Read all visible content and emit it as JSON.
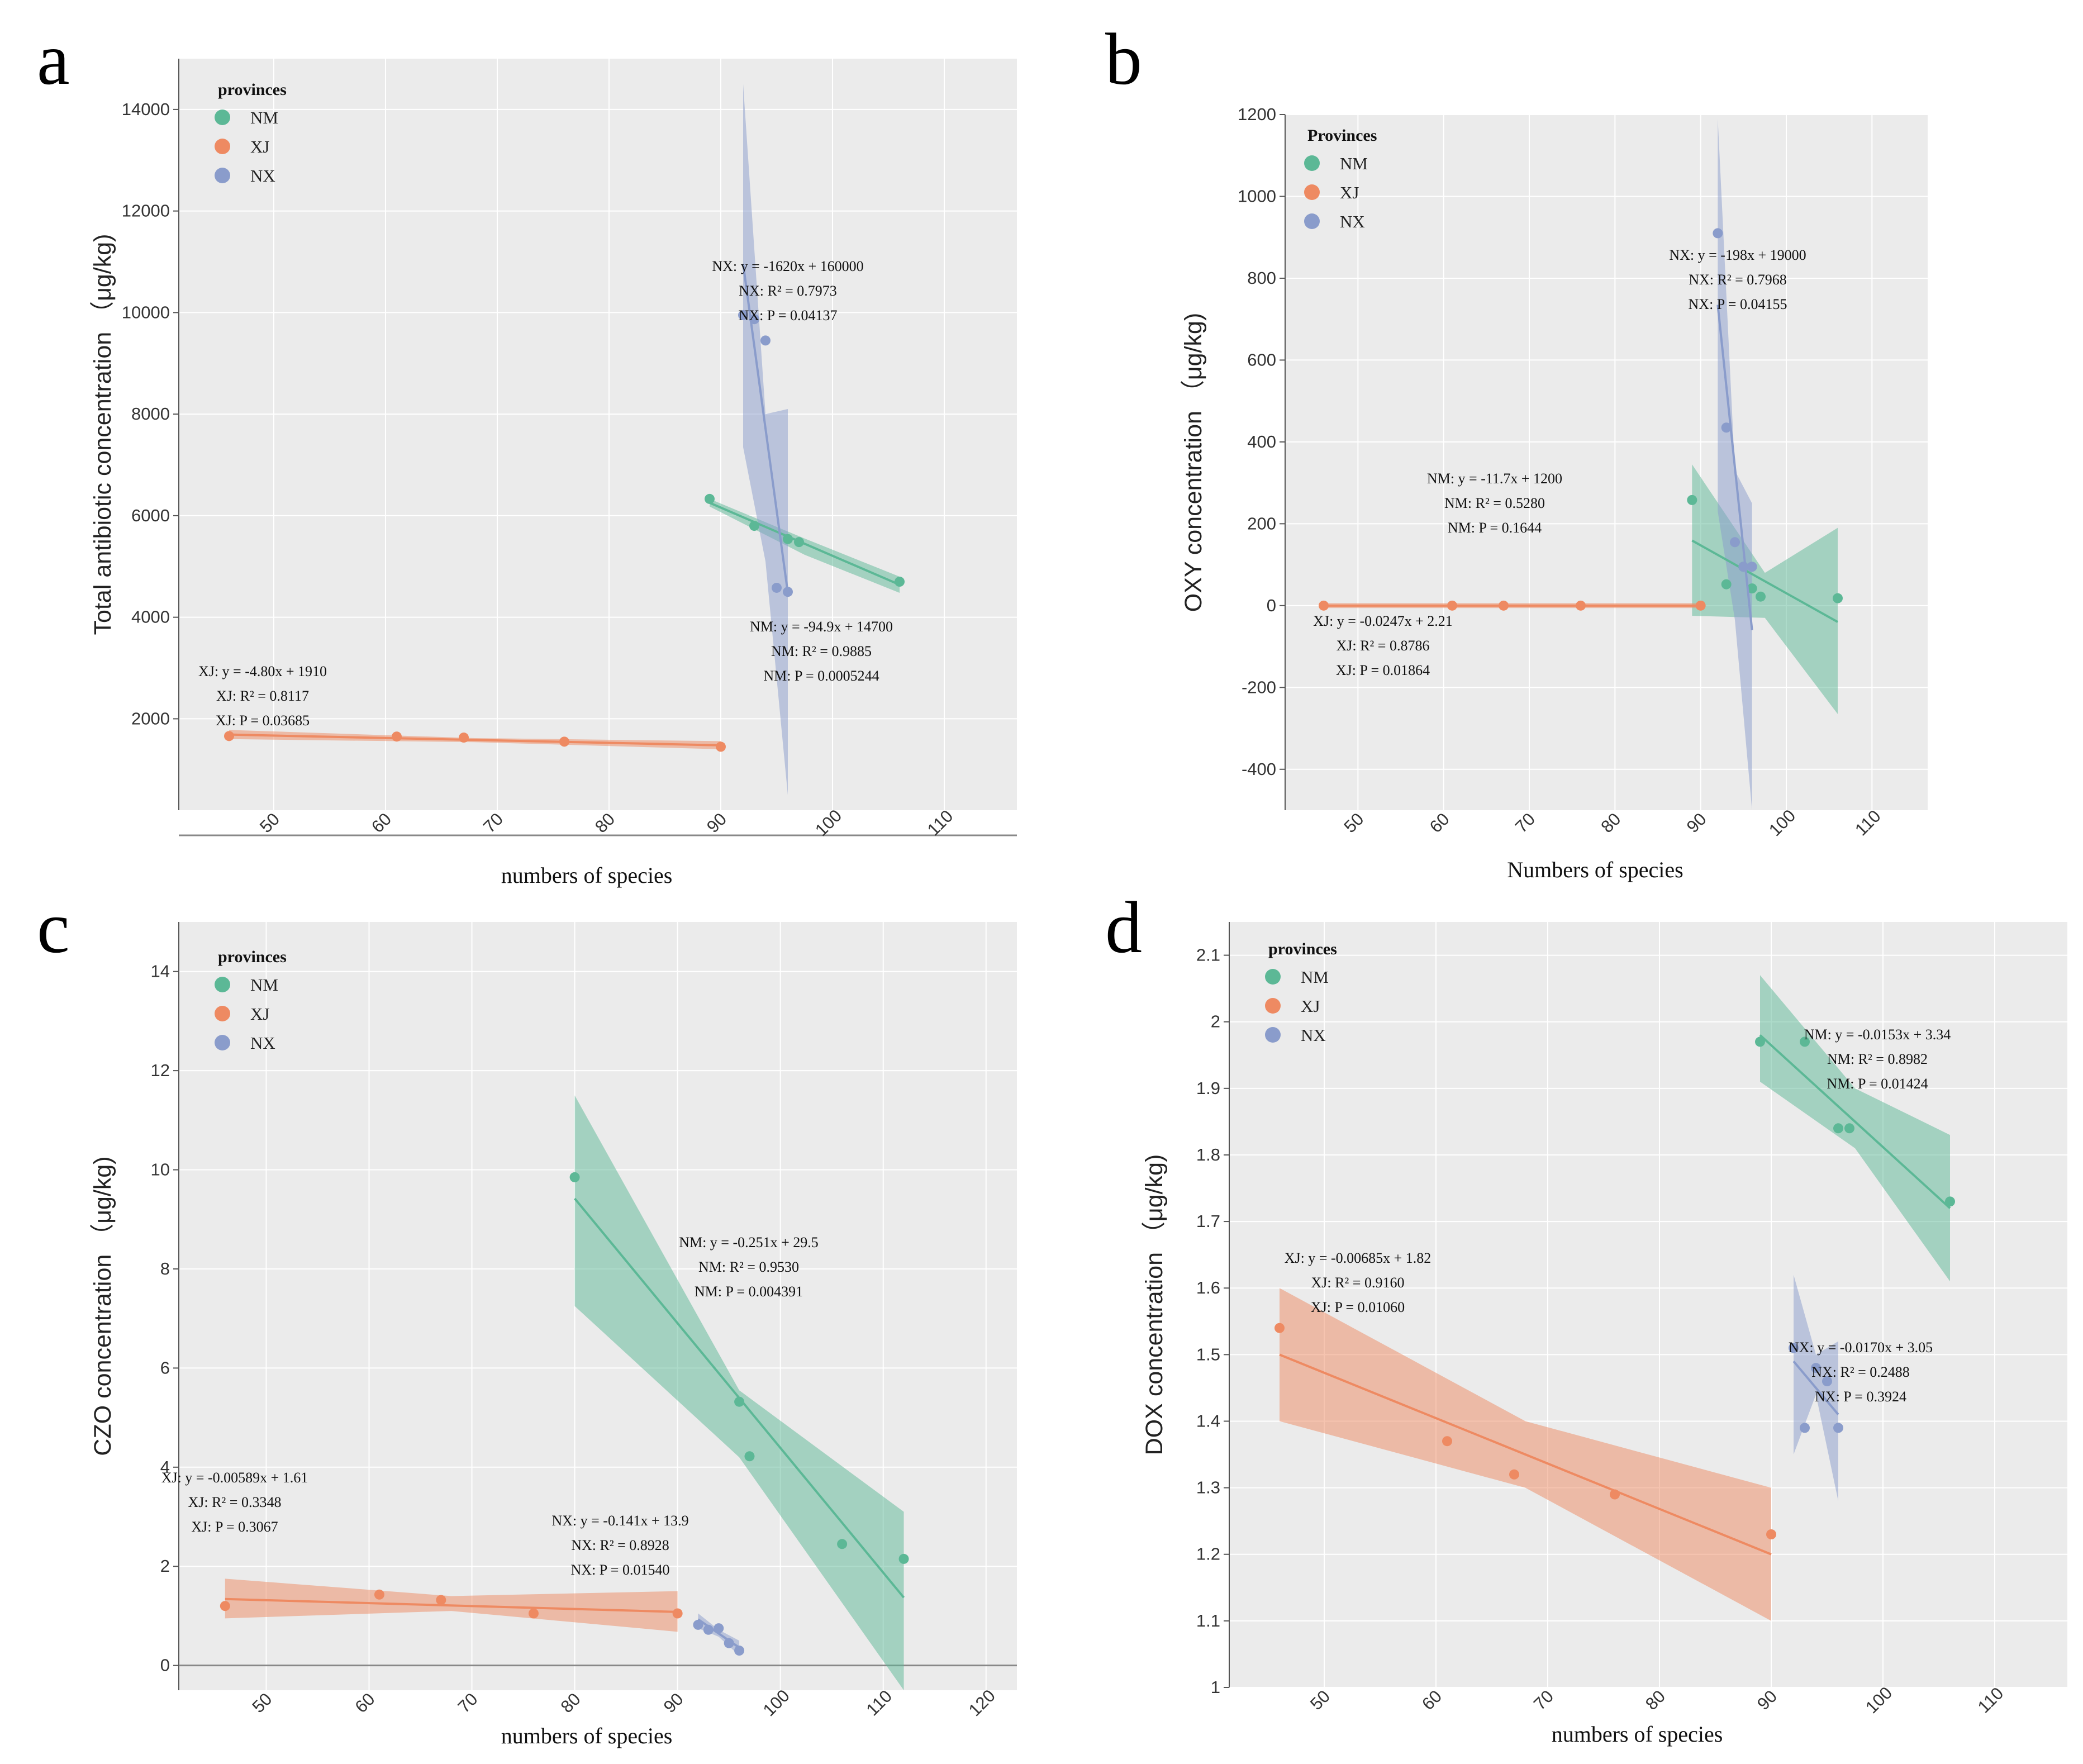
{
  "colors": {
    "NM": "#5cb896",
    "XJ": "#ee8a62",
    "NX": "#8a9ccb",
    "panel_bg": "#ebebeb",
    "grid": "#ffffff"
  },
  "chart_data": [
    {
      "panel": "a",
      "type": "scatter",
      "xlabel": "numbers of species",
      "ylabel": "Total antibiotic concentration （μg/kg)",
      "xlim": [
        41.5,
        116.5
      ],
      "ylim": [
        200,
        15000
      ],
      "xticks": [
        50,
        60,
        70,
        80,
        90,
        100,
        110
      ],
      "yticks": [
        2000,
        4000,
        6000,
        8000,
        10000,
        12000,
        14000
      ],
      "legend_title": "provinces",
      "legend": [
        "NM",
        "XJ",
        "NX"
      ],
      "series": [
        {
          "name": "NM",
          "x": [
            89,
            93,
            96,
            97,
            106
          ],
          "y": [
            6330,
            5800,
            5540,
            5480,
            4700
          ],
          "fit": {
            "x": [
              89,
              106
            ],
            "y": [
              6254,
              4641
            ]
          },
          "band": {
            "x": [
              89,
              97.5,
              106
            ],
            "upper": [
              6330,
              5550,
              4800
            ],
            "lower": [
              6180,
              5230,
              4480
            ]
          }
        },
        {
          "name": "XJ",
          "x": [
            46,
            61,
            67,
            76,
            90
          ],
          "y": [
            1660,
            1650,
            1630,
            1550,
            1450
          ],
          "fit": {
            "x": [
              46,
              90
            ],
            "y": [
              1689,
              1478
            ]
          },
          "band": {
            "x": [
              46,
              68,
              90
            ],
            "upper": [
              1780,
              1620,
              1560
            ],
            "lower": [
              1600,
              1540,
              1400
            ]
          }
        },
        {
          "name": "NX",
          "x": [
            92,
            93,
            94,
            95,
            96
          ],
          "y": [
            9950,
            9870,
            9450,
            4580,
            4500
          ],
          "fit": {
            "x": [
              92,
              96
            ],
            "y": [
              10960,
              4480
            ]
          },
          "band": {
            "x": [
              92,
              94,
              96
            ],
            "upper": [
              14500,
              8000,
              8100
            ],
            "lower": [
              7350,
              5100,
              500
            ]
          }
        }
      ],
      "annotations": [
        {
          "series": "NX",
          "lines": [
            "NX: y = -1620x + 160000",
            "NX: R² = 0.7973",
            "NX: P = 0.04137"
          ]
        },
        {
          "series": "NM",
          "lines": [
            "NM: y = -94.9x + 14700",
            "NM: R² = 0.9885",
            "NM: P = 0.0005244"
          ]
        },
        {
          "series": "XJ",
          "lines": [
            "XJ: y = -4.80x + 1910",
            "XJ: R² = 0.8117",
            "XJ: P = 0.03685"
          ]
        }
      ]
    },
    {
      "panel": "b",
      "type": "scatter",
      "xlabel": "Numbers of species",
      "ylabel": "OXY concentration （μg/kg)",
      "xlim": [
        41.5,
        116.5
      ],
      "ylim": [
        -500,
        1200
      ],
      "xticks": [
        50,
        60,
        70,
        80,
        90,
        100,
        110
      ],
      "yticks": [
        -400,
        -200,
        0,
        200,
        400,
        600,
        800,
        1000,
        1200
      ],
      "legend_title": "Provinces",
      "legend": [
        "NM",
        "XJ",
        "NX"
      ],
      "series": [
        {
          "name": "NM",
          "x": [
            89,
            93,
            95,
            96,
            97,
            106
          ],
          "y": [
            258,
            52,
            95,
            42,
            22,
            18
          ],
          "fit": {
            "x": [
              89,
              106
            ],
            "y": [
              159,
              -40
            ]
          },
          "band": {
            "x": [
              89,
              97.5,
              106
            ],
            "upper": [
              345,
              80,
              190
            ],
            "lower": [
              -25,
              -30,
              -265
            ]
          }
        },
        {
          "name": "XJ",
          "x": [
            46,
            61,
            67,
            76,
            90
          ],
          "y": [
            0,
            0,
            0,
            0,
            0
          ],
          "fit": {
            "x": [
              46,
              90
            ],
            "y": [
              0,
              0
            ]
          },
          "band": {
            "x": [
              46,
              68,
              90
            ],
            "upper": [
              6,
              6,
              6
            ],
            "lower": [
              -6,
              -6,
              -6
            ]
          }
        },
        {
          "name": "NX",
          "x": [
            92,
            93,
            94,
            95,
            96
          ],
          "y": [
            910,
            435,
            155,
            95,
            95
          ],
          "fit": {
            "x": [
              92,
              96
            ],
            "y": [
              735,
              -60
            ]
          },
          "band": {
            "x": [
              92,
              94,
              96
            ],
            "upper": [
              1190,
              330,
              250
            ],
            "lower": [
              230,
              -35,
              -500
            ]
          }
        }
      ],
      "annotations": [
        {
          "series": "NX",
          "lines": [
            "NX: y = -198x + 19000",
            "NX: R² = 0.7968",
            "NX: P = 0.04155"
          ]
        },
        {
          "series": "NM",
          "lines": [
            "NM: y = -11.7x + 1200",
            "NM: R² = 0.5280",
            "NM: P = 0.1644"
          ]
        },
        {
          "series": "XJ",
          "lines": [
            "XJ: y = -0.0247x + 2.21",
            "XJ: R² = 0.8786",
            "XJ: P = 0.01864"
          ]
        }
      ]
    },
    {
      "panel": "c",
      "type": "scatter",
      "xlabel": "numbers of species",
      "ylabel": "CZO concentration （μg/kg)",
      "xlim": [
        41.5,
        123
      ],
      "ylim": [
        -0.5,
        15
      ],
      "xticks": [
        50,
        60,
        70,
        80,
        90,
        100,
        110,
        120
      ],
      "yticks": [
        0,
        2,
        4,
        6,
        8,
        10,
        12,
        14
      ],
      "legend_title": "provinces",
      "legend": [
        "NM",
        "XJ",
        "NX"
      ],
      "series": [
        {
          "name": "NM",
          "x": [
            80,
            96,
            97,
            106,
            112
          ],
          "y": [
            9.85,
            5.32,
            4.22,
            2.45,
            2.15
          ],
          "fit": {
            "x": [
              80,
              112
            ],
            "y": [
              9.42,
              1.37
            ]
          },
          "band": {
            "x": [
              80,
              96,
              112
            ],
            "upper": [
              11.5,
              5.55,
              3.1
            ],
            "lower": [
              7.25,
              4.2,
              -0.5
            ]
          }
        },
        {
          "name": "XJ",
          "x": [
            46,
            61,
            67,
            76,
            90
          ],
          "y": [
            1.2,
            1.43,
            1.32,
            1.05,
            1.05
          ],
          "fit": {
            "x": [
              46,
              90
            ],
            "y": [
              1.34,
              1.08
            ]
          },
          "band": {
            "x": [
              46,
              68,
              90
            ],
            "upper": [
              1.75,
              1.4,
              1.5
            ],
            "lower": [
              0.95,
              1.1,
              0.68
            ]
          }
        },
        {
          "name": "NX",
          "x": [
            92,
            93,
            94,
            95,
            96
          ],
          "y": [
            0.82,
            0.72,
            0.75,
            0.45,
            0.3
          ],
          "fit": {
            "x": [
              92,
              96
            ],
            "y": [
              0.93,
              0.36
            ]
          },
          "band": {
            "x": [
              92,
              94,
              96
            ],
            "upper": [
              1.05,
              0.72,
              0.5
            ],
            "lower": [
              0.75,
              0.58,
              0.2
            ]
          }
        }
      ],
      "annotations": [
        {
          "series": "NM",
          "lines": [
            "NM: y = -0.251x + 29.5",
            "NM: R² = 0.9530",
            "NM: P = 0.004391"
          ]
        },
        {
          "series": "XJ",
          "lines": [
            "XJ: y = -0.00589x + 1.61",
            "XJ: R² = 0.3348",
            "XJ: P = 0.3067"
          ]
        },
        {
          "series": "NX",
          "lines": [
            "NX: y = -0.141x + 13.9",
            "NX: R² = 0.8928",
            "NX: P = 0.01540"
          ]
        }
      ]
    },
    {
      "panel": "d",
      "type": "scatter",
      "xlabel": "numbers of species",
      "ylabel": "DOX concentration （μg/kg)",
      "xlim": [
        41.5,
        116.5
      ],
      "ylim": [
        1,
        2.15
      ],
      "xticks": [
        50,
        60,
        70,
        80,
        90,
        100,
        110
      ],
      "yticks": [
        1,
        1.1,
        1.2,
        1.3,
        1.4,
        1.5,
        1.6,
        1.7,
        1.8,
        1.9,
        2,
        2.1
      ],
      "ytick_labels": [
        "1",
        "1.1",
        "1.2",
        "1.3",
        "1.4",
        "1.5",
        "1.6",
        "1.7",
        "1.8",
        "1.9",
        "2",
        "2.1"
      ],
      "legend_title": "provinces",
      "legend": [
        "NM",
        "XJ",
        "NX"
      ],
      "series": [
        {
          "name": "NM",
          "x": [
            89,
            93,
            96,
            97,
            106
          ],
          "y": [
            1.97,
            1.97,
            1.84,
            1.84,
            1.73
          ],
          "fit": {
            "x": [
              89,
              106
            ],
            "y": [
              1.98,
              1.72
            ]
          },
          "band": {
            "x": [
              89,
              97.5,
              106
            ],
            "upper": [
              2.07,
              1.9,
              1.83
            ],
            "lower": [
              1.91,
              1.81,
              1.61
            ]
          }
        },
        {
          "name": "XJ",
          "x": [
            46,
            61,
            67,
            76,
            90
          ],
          "y": [
            1.54,
            1.37,
            1.32,
            1.29,
            1.23
          ],
          "fit": {
            "x": [
              46,
              90
            ],
            "y": [
              1.5,
              1.2
            ]
          },
          "band": {
            "x": [
              46,
              68,
              90
            ],
            "upper": [
              1.6,
              1.4,
              1.3
            ],
            "lower": [
              1.4,
              1.3,
              1.1
            ]
          }
        },
        {
          "name": "NX",
          "x": [
            92,
            93,
            94,
            95,
            96
          ],
          "y": [
            1.51,
            1.39,
            1.48,
            1.46,
            1.39
          ],
          "fit": {
            "x": [
              92,
              96
            ],
            "y": [
              1.49,
              1.41
            ]
          },
          "band": {
            "x": [
              92,
              94,
              96
            ],
            "upper": [
              1.62,
              1.5,
              1.52
            ],
            "lower": [
              1.35,
              1.44,
              1.28
            ]
          }
        }
      ],
      "annotations": [
        {
          "series": "NM",
          "lines": [
            "NM: y = -0.0153x + 3.34",
            "NM: R² = 0.8982",
            "NM: P = 0.01424"
          ]
        },
        {
          "series": "XJ",
          "lines": [
            "XJ: y = -0.00685x + 1.82",
            "XJ: R² = 0.9160",
            "XJ: P = 0.01060"
          ]
        },
        {
          "series": "NX",
          "lines": [
            "NX: y = -0.0170x + 3.05",
            "NX: R² = 0.2488",
            "NX: P = 0.3924"
          ]
        }
      ]
    }
  ]
}
